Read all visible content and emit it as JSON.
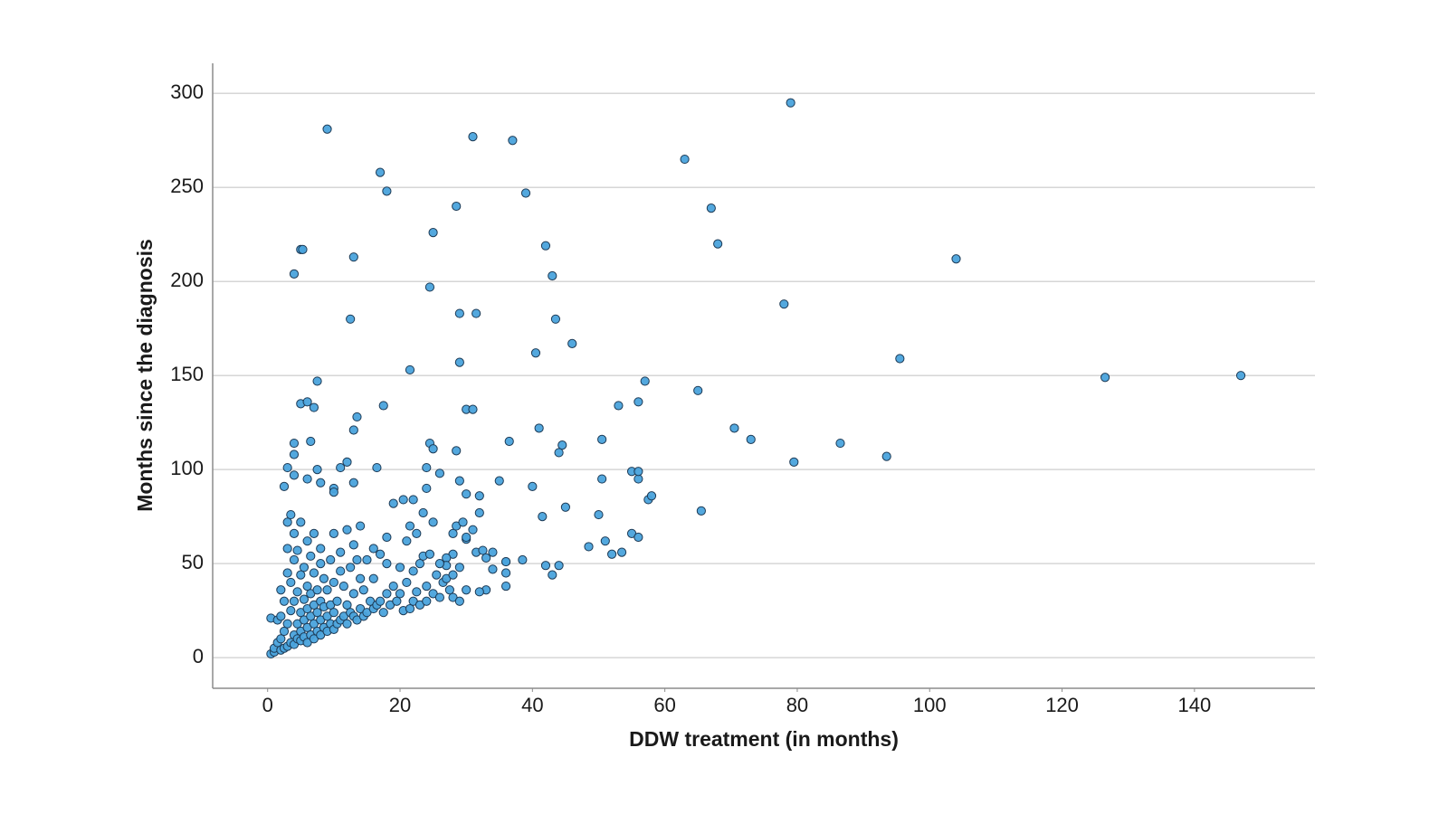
{
  "chart_data": {
    "type": "scatter",
    "x_label": "DDW treatment (in months)",
    "y_label": "Months since the diagnosis",
    "color": "#4aa3dc",
    "edgecolor": "#1d3a55",
    "grid": true,
    "xlim": [
      -8.3,
      158.2
    ],
    "ylim": [
      -16.3,
      316
    ],
    "xticks": [
      0,
      20,
      40,
      60,
      80,
      100,
      120,
      140
    ],
    "yticks": [
      0,
      50,
      100,
      150,
      200,
      250,
      300
    ],
    "x": [
      9,
      79,
      31,
      37,
      63,
      17,
      18,
      39,
      28.5,
      67,
      5,
      5.3,
      13,
      68,
      42,
      104,
      25,
      4,
      43,
      24.5,
      78,
      12.5,
      29,
      31.5,
      43.5,
      46,
      40.5,
      29,
      21.5,
      95.5,
      126.5,
      147,
      7.5,
      57,
      65,
      56,
      53,
      5,
      6,
      7,
      17.5,
      30,
      31,
      13.5,
      13,
      41,
      70.5,
      73,
      50.5,
      44.5,
      36.5,
      24.5,
      86.5,
      93.5,
      79.5,
      44,
      28.5,
      25,
      4,
      6.5,
      4,
      3,
      2.5,
      4,
      6,
      7.5,
      8,
      11,
      12,
      16.5,
      10,
      10,
      13,
      22,
      24,
      26,
      29,
      30,
      32,
      35,
      40,
      41.5,
      45,
      50,
      50.5,
      55,
      56,
      56,
      57.5,
      58,
      65.5,
      51,
      48.5,
      52,
      53.5,
      55,
      56,
      38.5,
      36,
      34,
      36,
      42,
      43,
      44,
      31.5,
      32.5,
      33,
      36,
      30,
      28,
      28,
      27,
      27,
      0.5,
      1,
      1,
      1.5,
      0.5,
      1.5,
      2,
      2,
      2,
      2,
      2.5,
      2.5,
      2.5,
      3,
      3,
      3,
      3,
      3,
      3.5,
      3.5,
      3.5,
      3.5,
      4,
      4,
      4,
      4,
      4,
      4.5,
      4.5,
      4.5,
      4.5,
      5,
      5,
      5,
      5,
      5,
      5.5,
      5.5,
      5.5,
      5.5,
      6,
      6,
      6,
      6,
      6,
      6.5,
      6.5,
      6.5,
      6.5,
      7,
      7,
      7,
      7,
      7,
      7.5,
      7.5,
      7.5,
      8,
      8,
      8,
      8,
      8,
      8.5,
      8.5,
      8.5,
      9,
      9,
      9,
      9.5,
      9.5,
      9.5,
      10,
      10,
      10,
      10,
      10.5,
      10.5,
      11,
      11,
      11,
      11.5,
      11.5,
      12,
      12,
      12,
      12.5,
      12.5,
      13,
      13,
      13,
      13.5,
      13.5,
      14,
      14,
      14,
      14.5,
      14.5,
      15,
      15,
      15.5,
      16,
      16,
      16,
      16.5,
      17,
      17,
      17.5,
      18,
      18,
      18,
      18.5,
      19,
      19,
      19.5,
      20,
      20,
      20.5,
      20.5,
      21,
      21,
      21.5,
      21.5,
      22,
      22,
      22.5,
      22.5,
      23,
      23,
      23.5,
      23.5,
      24,
      24,
      24,
      24.5,
      25,
      25,
      25.5,
      26,
      26,
      26.5,
      27,
      27.5,
      28,
      28,
      28.5,
      29,
      29,
      29.5,
      30,
      30,
      31,
      32,
      32,
      33,
      34,
      36
    ],
    "values": [
      281,
      295,
      277,
      275,
      265,
      258,
      248,
      247,
      240,
      239,
      217,
      217,
      213,
      220,
      219,
      212,
      226,
      204,
      203,
      197,
      188,
      180,
      183,
      183,
      180,
      167,
      162,
      157,
      153,
      159,
      149,
      150,
      147,
      147,
      142,
      136,
      134,
      135,
      136,
      133,
      134,
      132,
      132,
      128,
      121,
      122,
      122,
      116,
      116,
      113,
      115,
      114,
      114,
      107,
      104,
      109,
      110,
      111,
      114,
      115,
      108,
      101,
      91,
      97,
      95,
      100,
      93,
      101,
      104,
      101,
      90,
      88,
      93,
      84,
      101,
      98,
      94,
      87,
      86,
      94,
      91,
      75,
      80,
      76,
      95,
      99,
      95,
      99,
      84,
      86,
      78,
      62,
      59,
      55,
      56,
      66,
      64,
      52,
      51,
      47,
      45,
      49,
      44,
      49,
      56,
      57,
      36,
      38,
      63,
      66,
      55,
      53,
      49,
      2,
      3,
      5,
      8,
      21,
      20,
      4,
      10,
      22,
      36,
      5,
      14,
      30,
      6,
      18,
      45,
      58,
      72,
      8,
      25,
      40,
      76,
      7,
      12,
      30,
      52,
      66,
      10,
      18,
      35,
      57,
      9,
      14,
      24,
      44,
      72,
      11,
      20,
      31,
      48,
      8,
      16,
      26,
      38,
      62,
      12,
      22,
      34,
      54,
      10,
      18,
      28,
      45,
      66,
      14,
      24,
      36,
      12,
      20,
      30,
      50,
      58,
      16,
      27,
      42,
      14,
      22,
      36,
      18,
      28,
      52,
      15,
      24,
      40,
      66,
      18,
      30,
      20,
      46,
      56,
      22,
      38,
      18,
      28,
      68,
      24,
      48,
      22,
      34,
      60,
      20,
      52,
      26,
      42,
      70,
      22,
      36,
      24,
      52,
      30,
      26,
      42,
      58,
      28,
      30,
      55,
      24,
      34,
      50,
      64,
      28,
      38,
      82,
      30,
      34,
      48,
      25,
      84,
      40,
      62,
      26,
      70,
      30,
      46,
      35,
      66,
      50,
      28,
      54,
      77,
      30,
      38,
      90,
      55,
      34,
      72,
      44,
      32,
      50,
      40,
      42,
      36,
      32,
      44,
      70,
      30,
      48,
      72,
      64,
      36,
      68,
      35,
      77,
      53,
      56,
      51
    ]
  }
}
